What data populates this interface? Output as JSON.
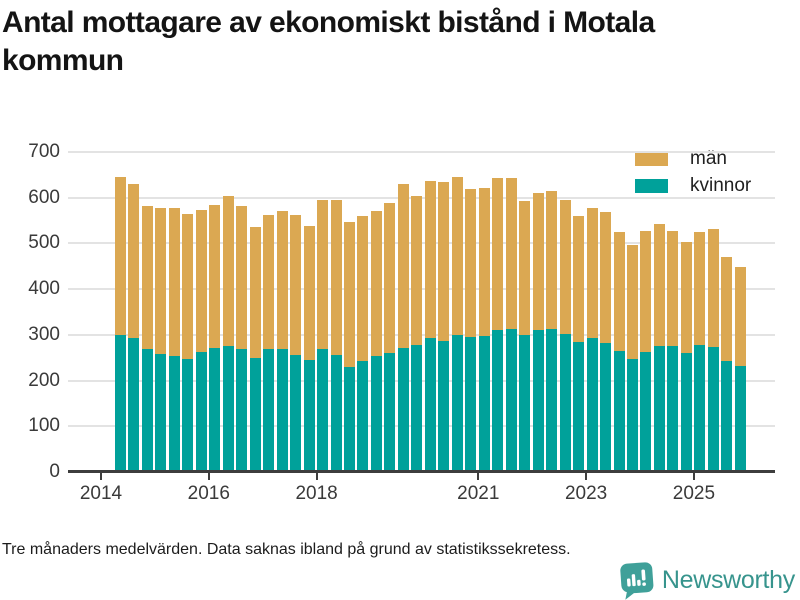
{
  "title": "Antal mottagare av ekonomiskt bistånd i Motala kommun",
  "legend": {
    "man_label": "män",
    "kvinnor_label": "kvinnor"
  },
  "footnote": "Tre månaders medelvärden. Data saknas ibland på grund av statistikssekretess.",
  "logo": {
    "text": "Newsworthy"
  },
  "colors": {
    "man": "#DBA852",
    "kvinnor": "#00A19A",
    "gridline": "#E3E3E3",
    "axis": "#3D3D3D",
    "tick_label": "#3A3A3A",
    "brand_text": "#37948D",
    "brand_icon": "#3FA099"
  },
  "chart_data": {
    "type": "bar",
    "stacked": true,
    "title": "Antal mottagare av ekonomiskt bistånd i Motala kommun",
    "xlabel": "",
    "ylabel": "",
    "ylim": [
      0,
      700
    ],
    "yticks": [
      0,
      100,
      200,
      300,
      400,
      500,
      600,
      700
    ],
    "xtick_labels": [
      "2014",
      "2016",
      "2018",
      "2021",
      "2023",
      "2025"
    ],
    "grid": "horizontal",
    "legend_position": "top-right",
    "x": [
      "2014-Q2",
      "2014-Q3",
      "2014-Q4",
      "2015-Q1",
      "2015-Q2",
      "2015-Q3",
      "2015-Q4",
      "2016-Q1",
      "2016-Q2",
      "2016-Q3",
      "2016-Q4",
      "2017-Q1",
      "2017-Q2",
      "2017-Q3",
      "2017-Q4",
      "2018-Q1",
      "2018-Q2",
      "2018-Q3",
      "2018-Q4",
      "2019-Q1",
      "2019-Q2",
      "2019-Q3",
      "2019-Q4",
      "2020-Q1",
      "2020-Q2",
      "2020-Q3",
      "2020-Q4",
      "2021-Q1",
      "2021-Q2",
      "2021-Q3",
      "2021-Q4",
      "2022-Q1",
      "2022-Q2",
      "2022-Q3",
      "2022-Q4",
      "2023-Q1",
      "2023-Q2",
      "2023-Q3",
      "2023-Q4",
      "2024-Q1",
      "2024-Q2",
      "2024-Q3",
      "2024-Q4",
      "2025-Q1",
      "2025-Q2",
      "2025-Q3",
      "2025-Q4"
    ],
    "series": [
      {
        "name": "kvinnor",
        "color_key": "kvinnor",
        "values": [
          299,
          294,
          269,
          259,
          254,
          248,
          262,
          271,
          275,
          270,
          249,
          268,
          268,
          257,
          244,
          268,
          257,
          229,
          243,
          254,
          261,
          272,
          277,
          293,
          286,
          300,
          295,
          297,
          310,
          312,
          300,
          310,
          313,
          302,
          284,
          293,
          283,
          265,
          248,
          262,
          276,
          276,
          260,
          278,
          274,
          243,
          231
        ]
      },
      {
        "name": "män",
        "color_key": "man",
        "values": [
          346,
          337,
          313,
          319,
          324,
          317,
          312,
          314,
          328,
          311,
          287,
          294,
          303,
          305,
          295,
          327,
          339,
          317,
          318,
          318,
          328,
          357,
          327,
          343,
          348,
          346,
          324,
          325,
          334,
          332,
          292,
          300,
          302,
          292,
          277,
          285,
          285,
          259,
          248,
          265,
          266,
          251,
          244,
          247,
          258,
          228,
          217
        ]
      }
    ]
  }
}
